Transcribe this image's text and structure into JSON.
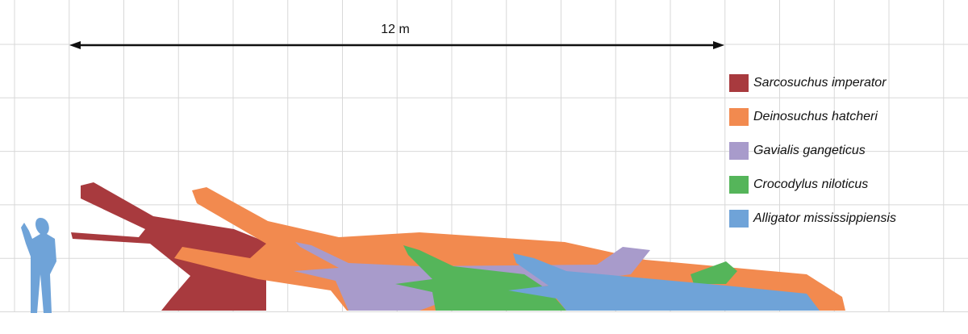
{
  "scale": {
    "label": "12 m"
  },
  "legend": {
    "items": [
      {
        "name": "Sarcosuchus imperator",
        "color": "#a83a3e"
      },
      {
        "name": "Deinosuchus hatcheri",
        "color": "#f28a4f"
      },
      {
        "name": "Gavialis gangeticus",
        "color": "#a89bcb"
      },
      {
        "name": "Crocodylus niloticus",
        "color": "#55b55a"
      },
      {
        "name": "Alligator mississippiensis",
        "color": "#6fa3d8"
      }
    ]
  }
}
